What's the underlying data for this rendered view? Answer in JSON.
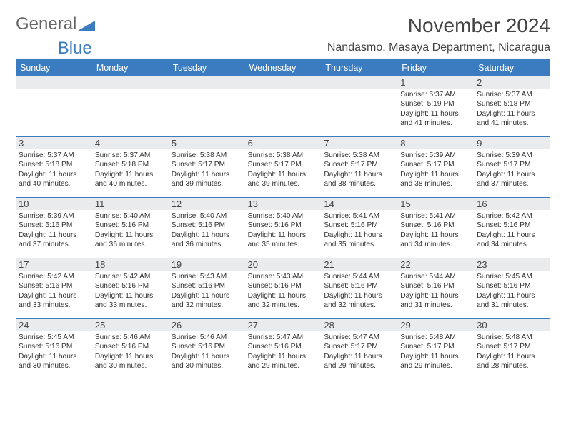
{
  "logo": {
    "part1": "General",
    "part2": "Blue"
  },
  "title": "November 2024",
  "location": "Nandasmo, Masaya Department, Nicaragua",
  "colors": {
    "accent": "#3b7bbf",
    "band": "#e9ebed",
    "text": "#333333",
    "title_text": "#444444",
    "background": "#ffffff"
  },
  "fonts": {
    "title_size": 28,
    "location_size": 16,
    "weekday_size": 12.5,
    "daynum_size": 13,
    "body_size": 10.2
  },
  "weekdays": [
    "Sunday",
    "Monday",
    "Tuesday",
    "Wednesday",
    "Thursday",
    "Friday",
    "Saturday"
  ],
  "weeks": [
    [
      {
        "n": "",
        "sr": "",
        "ss": "",
        "dl": ""
      },
      {
        "n": "",
        "sr": "",
        "ss": "",
        "dl": ""
      },
      {
        "n": "",
        "sr": "",
        "ss": "",
        "dl": ""
      },
      {
        "n": "",
        "sr": "",
        "ss": "",
        "dl": ""
      },
      {
        "n": "",
        "sr": "",
        "ss": "",
        "dl": ""
      },
      {
        "n": "1",
        "sr": "Sunrise: 5:37 AM",
        "ss": "Sunset: 5:19 PM",
        "dl": "Daylight: 11 hours and 41 minutes."
      },
      {
        "n": "2",
        "sr": "Sunrise: 5:37 AM",
        "ss": "Sunset: 5:18 PM",
        "dl": "Daylight: 11 hours and 41 minutes."
      }
    ],
    [
      {
        "n": "3",
        "sr": "Sunrise: 5:37 AM",
        "ss": "Sunset: 5:18 PM",
        "dl": "Daylight: 11 hours and 40 minutes."
      },
      {
        "n": "4",
        "sr": "Sunrise: 5:37 AM",
        "ss": "Sunset: 5:18 PM",
        "dl": "Daylight: 11 hours and 40 minutes."
      },
      {
        "n": "5",
        "sr": "Sunrise: 5:38 AM",
        "ss": "Sunset: 5:17 PM",
        "dl": "Daylight: 11 hours and 39 minutes."
      },
      {
        "n": "6",
        "sr": "Sunrise: 5:38 AM",
        "ss": "Sunset: 5:17 PM",
        "dl": "Daylight: 11 hours and 39 minutes."
      },
      {
        "n": "7",
        "sr": "Sunrise: 5:38 AM",
        "ss": "Sunset: 5:17 PM",
        "dl": "Daylight: 11 hours and 38 minutes."
      },
      {
        "n": "8",
        "sr": "Sunrise: 5:39 AM",
        "ss": "Sunset: 5:17 PM",
        "dl": "Daylight: 11 hours and 38 minutes."
      },
      {
        "n": "9",
        "sr": "Sunrise: 5:39 AM",
        "ss": "Sunset: 5:17 PM",
        "dl": "Daylight: 11 hours and 37 minutes."
      }
    ],
    [
      {
        "n": "10",
        "sr": "Sunrise: 5:39 AM",
        "ss": "Sunset: 5:16 PM",
        "dl": "Daylight: 11 hours and 37 minutes."
      },
      {
        "n": "11",
        "sr": "Sunrise: 5:40 AM",
        "ss": "Sunset: 5:16 PM",
        "dl": "Daylight: 11 hours and 36 minutes."
      },
      {
        "n": "12",
        "sr": "Sunrise: 5:40 AM",
        "ss": "Sunset: 5:16 PM",
        "dl": "Daylight: 11 hours and 36 minutes."
      },
      {
        "n": "13",
        "sr": "Sunrise: 5:40 AM",
        "ss": "Sunset: 5:16 PM",
        "dl": "Daylight: 11 hours and 35 minutes."
      },
      {
        "n": "14",
        "sr": "Sunrise: 5:41 AM",
        "ss": "Sunset: 5:16 PM",
        "dl": "Daylight: 11 hours and 35 minutes."
      },
      {
        "n": "15",
        "sr": "Sunrise: 5:41 AM",
        "ss": "Sunset: 5:16 PM",
        "dl": "Daylight: 11 hours and 34 minutes."
      },
      {
        "n": "16",
        "sr": "Sunrise: 5:42 AM",
        "ss": "Sunset: 5:16 PM",
        "dl": "Daylight: 11 hours and 34 minutes."
      }
    ],
    [
      {
        "n": "17",
        "sr": "Sunrise: 5:42 AM",
        "ss": "Sunset: 5:16 PM",
        "dl": "Daylight: 11 hours and 33 minutes."
      },
      {
        "n": "18",
        "sr": "Sunrise: 5:42 AM",
        "ss": "Sunset: 5:16 PM",
        "dl": "Daylight: 11 hours and 33 minutes."
      },
      {
        "n": "19",
        "sr": "Sunrise: 5:43 AM",
        "ss": "Sunset: 5:16 PM",
        "dl": "Daylight: 11 hours and 32 minutes."
      },
      {
        "n": "20",
        "sr": "Sunrise: 5:43 AM",
        "ss": "Sunset: 5:16 PM",
        "dl": "Daylight: 11 hours and 32 minutes."
      },
      {
        "n": "21",
        "sr": "Sunrise: 5:44 AM",
        "ss": "Sunset: 5:16 PM",
        "dl": "Daylight: 11 hours and 32 minutes."
      },
      {
        "n": "22",
        "sr": "Sunrise: 5:44 AM",
        "ss": "Sunset: 5:16 PM",
        "dl": "Daylight: 11 hours and 31 minutes."
      },
      {
        "n": "23",
        "sr": "Sunrise: 5:45 AM",
        "ss": "Sunset: 5:16 PM",
        "dl": "Daylight: 11 hours and 31 minutes."
      }
    ],
    [
      {
        "n": "24",
        "sr": "Sunrise: 5:45 AM",
        "ss": "Sunset: 5:16 PM",
        "dl": "Daylight: 11 hours and 30 minutes."
      },
      {
        "n": "25",
        "sr": "Sunrise: 5:46 AM",
        "ss": "Sunset: 5:16 PM",
        "dl": "Daylight: 11 hours and 30 minutes."
      },
      {
        "n": "26",
        "sr": "Sunrise: 5:46 AM",
        "ss": "Sunset: 5:16 PM",
        "dl": "Daylight: 11 hours and 30 minutes."
      },
      {
        "n": "27",
        "sr": "Sunrise: 5:47 AM",
        "ss": "Sunset: 5:16 PM",
        "dl": "Daylight: 11 hours and 29 minutes."
      },
      {
        "n": "28",
        "sr": "Sunrise: 5:47 AM",
        "ss": "Sunset: 5:17 PM",
        "dl": "Daylight: 11 hours and 29 minutes."
      },
      {
        "n": "29",
        "sr": "Sunrise: 5:48 AM",
        "ss": "Sunset: 5:17 PM",
        "dl": "Daylight: 11 hours and 29 minutes."
      },
      {
        "n": "30",
        "sr": "Sunrise: 5:48 AM",
        "ss": "Sunset: 5:17 PM",
        "dl": "Daylight: 11 hours and 28 minutes."
      }
    ]
  ]
}
